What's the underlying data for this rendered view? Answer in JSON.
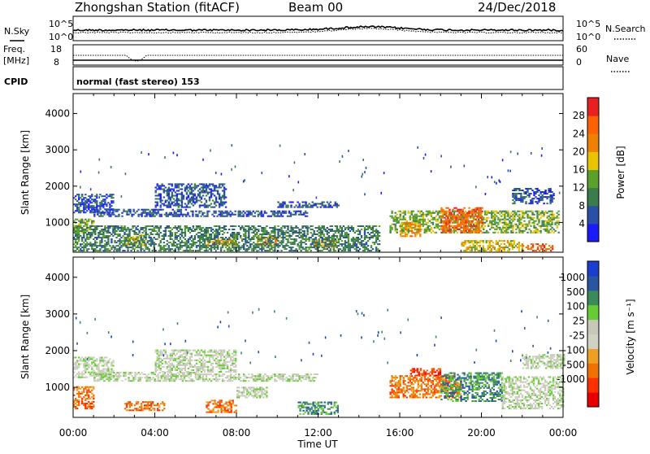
{
  "header": {
    "station": "Zhongshan Station (fitACF)",
    "beam": "Beam 00",
    "date": "24/Dec/2018"
  },
  "sky_panel": {
    "left_label": "N.Sky",
    "left_ticks": [
      "10^5",
      "10^0"
    ],
    "right_label": "N.Search",
    "right_ticks": [
      "10^5",
      "10^0"
    ]
  },
  "freq_panel": {
    "left_label_1": "Freq.",
    "left_label_2": "[MHz]",
    "left_ticks": [
      "18",
      "8"
    ],
    "right_label": "Nave",
    "right_ticks": [
      "60",
      "0"
    ]
  },
  "cpid_panel": {
    "label": "CPID",
    "text": "normal (fast stereo) 153"
  },
  "x_axis": {
    "ticks": [
      "00:00",
      "04:00",
      "08:00",
      "12:00",
      "16:00",
      "20:00",
      "00:00"
    ],
    "label": "Time UT"
  },
  "chart_data": [
    {
      "type": "heatmap",
      "name": "power",
      "ylabel": "Slant Range [km]",
      "y_ticks": [
        "1000",
        "2000",
        "3000",
        "4000"
      ],
      "ylim": [
        180,
        4550
      ],
      "xlim_hours": [
        0,
        24
      ],
      "colorbar": {
        "label": "Power [dB]",
        "ticks": [
          "4",
          "8",
          "12",
          "16",
          "20",
          "24",
          "28"
        ],
        "colors": [
          "#1a1aff",
          "#2a4fa8",
          "#3a7d4a",
          "#5aa02a",
          "#e8c400",
          "#f08000",
          "#ff6000",
          "#e82020"
        ]
      },
      "echo_regions": [
        {
          "t": [
            0.0,
            2.0
          ],
          "r": [
            1250,
            1750
          ],
          "level": 1
        },
        {
          "t": [
            0.0,
            1.0
          ],
          "r": [
            700,
            1100
          ],
          "level": 3
        },
        {
          "t": [
            1.0,
            5.5
          ],
          "r": [
            1150,
            1350
          ],
          "level": 1
        },
        {
          "t": [
            4.0,
            7.5
          ],
          "r": [
            1400,
            2050
          ],
          "level": 1
        },
        {
          "t": [
            5.5,
            11.5
          ],
          "r": [
            1150,
            1300
          ],
          "level": 1
        },
        {
          "t": [
            10.0,
            13.0
          ],
          "r": [
            1400,
            1550
          ],
          "level": 1
        },
        {
          "t": [
            2.5,
            3.5
          ],
          "r": [
            350,
            650
          ],
          "level": 4
        },
        {
          "t": [
            6.5,
            8.0
          ],
          "r": [
            350,
            550
          ],
          "level": 5
        },
        {
          "t": [
            9.0,
            10.0
          ],
          "r": [
            350,
            600
          ],
          "level": 5
        },
        {
          "t": [
            11.8,
            13.0
          ],
          "r": [
            300,
            500
          ],
          "level": 5
        },
        {
          "t": [
            15.5,
            23.8
          ],
          "r": [
            700,
            1300
          ],
          "level": 3
        },
        {
          "t": [
            18.0,
            20.0
          ],
          "r": [
            700,
            1400
          ],
          "level": 6
        },
        {
          "t": [
            16.0,
            17.0
          ],
          "r": [
            600,
            1000
          ],
          "level": 5
        },
        {
          "t": [
            19.0,
            22.0
          ],
          "r": [
            200,
            500
          ],
          "level": 4
        },
        {
          "t": [
            22.0,
            23.5
          ],
          "r": [
            200,
            400
          ],
          "level": 6
        },
        {
          "t": [
            21.5,
            23.5
          ],
          "r": [
            1500,
            1950
          ],
          "level": 1
        },
        {
          "t": [
            0.0,
            15.0
          ],
          "r": [
            200,
            900
          ],
          "level": 2
        }
      ]
    },
    {
      "type": "heatmap",
      "name": "velocity",
      "ylabel": "Slant Range [km]",
      "y_ticks": [
        "1000",
        "2000",
        "3000",
        "4000"
      ],
      "ylim": [
        180,
        4550
      ],
      "xlim_hours": [
        0,
        24
      ],
      "colorbar": {
        "label": "Velocity [m s⁻¹]",
        "ticks": [
          "1000",
          "500",
          "100",
          "25",
          "-25",
          "-100",
          "-500",
          "-1000"
        ],
        "colors": [
          "#1a3fd0",
          "#2a55a0",
          "#3a8a5a",
          "#66cc33",
          "#c8c8b8",
          "#d2d2c4",
          "#f0a020",
          "#f07000",
          "#ff3000",
          "#e80000"
        ]
      },
      "echo_regions": [
        {
          "t": [
            0.0,
            2.0
          ],
          "r": [
            1250,
            1800
          ],
          "level": 4
        },
        {
          "t": [
            0.0,
            1.0
          ],
          "r": [
            400,
            1000
          ],
          "level": 7
        },
        {
          "t": [
            1.0,
            6.0
          ],
          "r": [
            1150,
            1400
          ],
          "level": 4
        },
        {
          "t": [
            4.0,
            8.0
          ],
          "r": [
            1400,
            2000
          ],
          "level": 4
        },
        {
          "t": [
            6.0,
            12.0
          ],
          "r": [
            1150,
            1350
          ],
          "level": 4
        },
        {
          "t": [
            8.0,
            9.5
          ],
          "r": [
            700,
            1000
          ],
          "level": 4
        },
        {
          "t": [
            2.5,
            4.5
          ],
          "r": [
            350,
            600
          ],
          "level": 7
        },
        {
          "t": [
            6.5,
            8.0
          ],
          "r": [
            300,
            650
          ],
          "level": 7
        },
        {
          "t": [
            11.0,
            13.0
          ],
          "r": [
            250,
            600
          ],
          "level": 2
        },
        {
          "t": [
            15.5,
            19.0
          ],
          "r": [
            700,
            1300
          ],
          "level": 7
        },
        {
          "t": [
            18.0,
            21.0
          ],
          "r": [
            600,
            1400
          ],
          "level": 2
        },
        {
          "t": [
            21.0,
            24.0
          ],
          "r": [
            400,
            1300
          ],
          "level": 4
        },
        {
          "t": [
            22.0,
            24.0
          ],
          "r": [
            1500,
            1900
          ],
          "level": 4
        },
        {
          "t": [
            16.5,
            18.0
          ],
          "r": [
            1300,
            1500
          ],
          "level": 8
        }
      ]
    }
  ]
}
